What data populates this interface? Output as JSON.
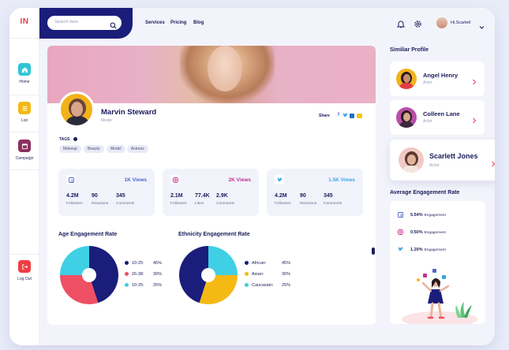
{
  "logo": "IN",
  "sidebar": {
    "items": [
      {
        "label": "Home",
        "icon": "home-icon",
        "color": "#2fc6d6"
      },
      {
        "label": "List",
        "icon": "list-icon",
        "color": "#f5b914"
      },
      {
        "label": "Campaign",
        "icon": "campaign-icon",
        "color": "#8b2f5f"
      }
    ],
    "logout": {
      "label": "Log Out",
      "icon": "logout-icon",
      "color": "#ef3e45"
    }
  },
  "search": {
    "placeholder": "Search here"
  },
  "topnav": [
    "Services",
    "Pricing",
    "Blog"
  ],
  "user": {
    "greeting": "Hi,Scarlett"
  },
  "profile": {
    "name": "Marvin Steward",
    "role": "Model",
    "share_label": "Share",
    "tags_label": "TAGS",
    "tags": [
      "Makeup",
      "Beauty",
      "Model",
      "Actress"
    ]
  },
  "stats": [
    {
      "platform": "facebook",
      "views": "1K Views",
      "color": "#4b67c7",
      "items": [
        {
          "n": "4.2M",
          "l": "Followers"
        },
        {
          "n": "90",
          "l": "Reactions"
        },
        {
          "n": "345",
          "l": "Comments"
        }
      ]
    },
    {
      "platform": "instagram",
      "views": "2K Views",
      "color": "#c72f8d",
      "items": [
        {
          "n": "2.1M",
          "l": "Followers"
        },
        {
          "n": "77.4K",
          "l": "Likes"
        },
        {
          "n": "2.9K",
          "l": "Comments"
        }
      ]
    },
    {
      "platform": "twitter",
      "views": "1.5K Views",
      "color": "#3aa6e8",
      "items": [
        {
          "n": "4.2M",
          "l": "Followers"
        },
        {
          "n": "90",
          "l": "Reactions"
        },
        {
          "n": "345",
          "l": "Comments"
        }
      ]
    }
  ],
  "age_chart": {
    "title": "Age Engagement Rate",
    "legend": [
      {
        "label": "10-25:",
        "value": "45%",
        "color": "#1b1d7a"
      },
      {
        "label": "26-38:",
        "value": "30%",
        "color": "#ef4f63"
      },
      {
        "label": "10-25:",
        "value": "25%",
        "color": "#3fd0e6"
      }
    ]
  },
  "ethnicity_chart": {
    "title": "Ethnicity Engagement Rate",
    "legend": [
      {
        "label": "African:",
        "value": "45%",
        "color": "#1b1d7a"
      },
      {
        "label": "Asian:",
        "value": "30%",
        "color": "#f5b914"
      },
      {
        "label": "Caucasian:",
        "value": "25%",
        "color": "#3fd0e6"
      }
    ]
  },
  "similar": {
    "title": "Similiar Profile",
    "profiles": [
      {
        "name": "Angel Henry",
        "role": "Actor"
      },
      {
        "name": "Colleen Lane",
        "role": "Actor"
      },
      {
        "name": "Scarlett Jones",
        "role": "Actor"
      }
    ]
  },
  "engagement": {
    "title": "Average Engagement Rate",
    "rows": [
      {
        "pct": "5.54%",
        "label": "Engagement",
        "icon": "facebook-icon"
      },
      {
        "pct": "0.50%",
        "label": "Engagement",
        "icon": "instagram-icon"
      },
      {
        "pct": "1.20%",
        "label": "Engagement",
        "icon": "twitter-icon"
      }
    ]
  },
  "accent": "#1b1d7a"
}
